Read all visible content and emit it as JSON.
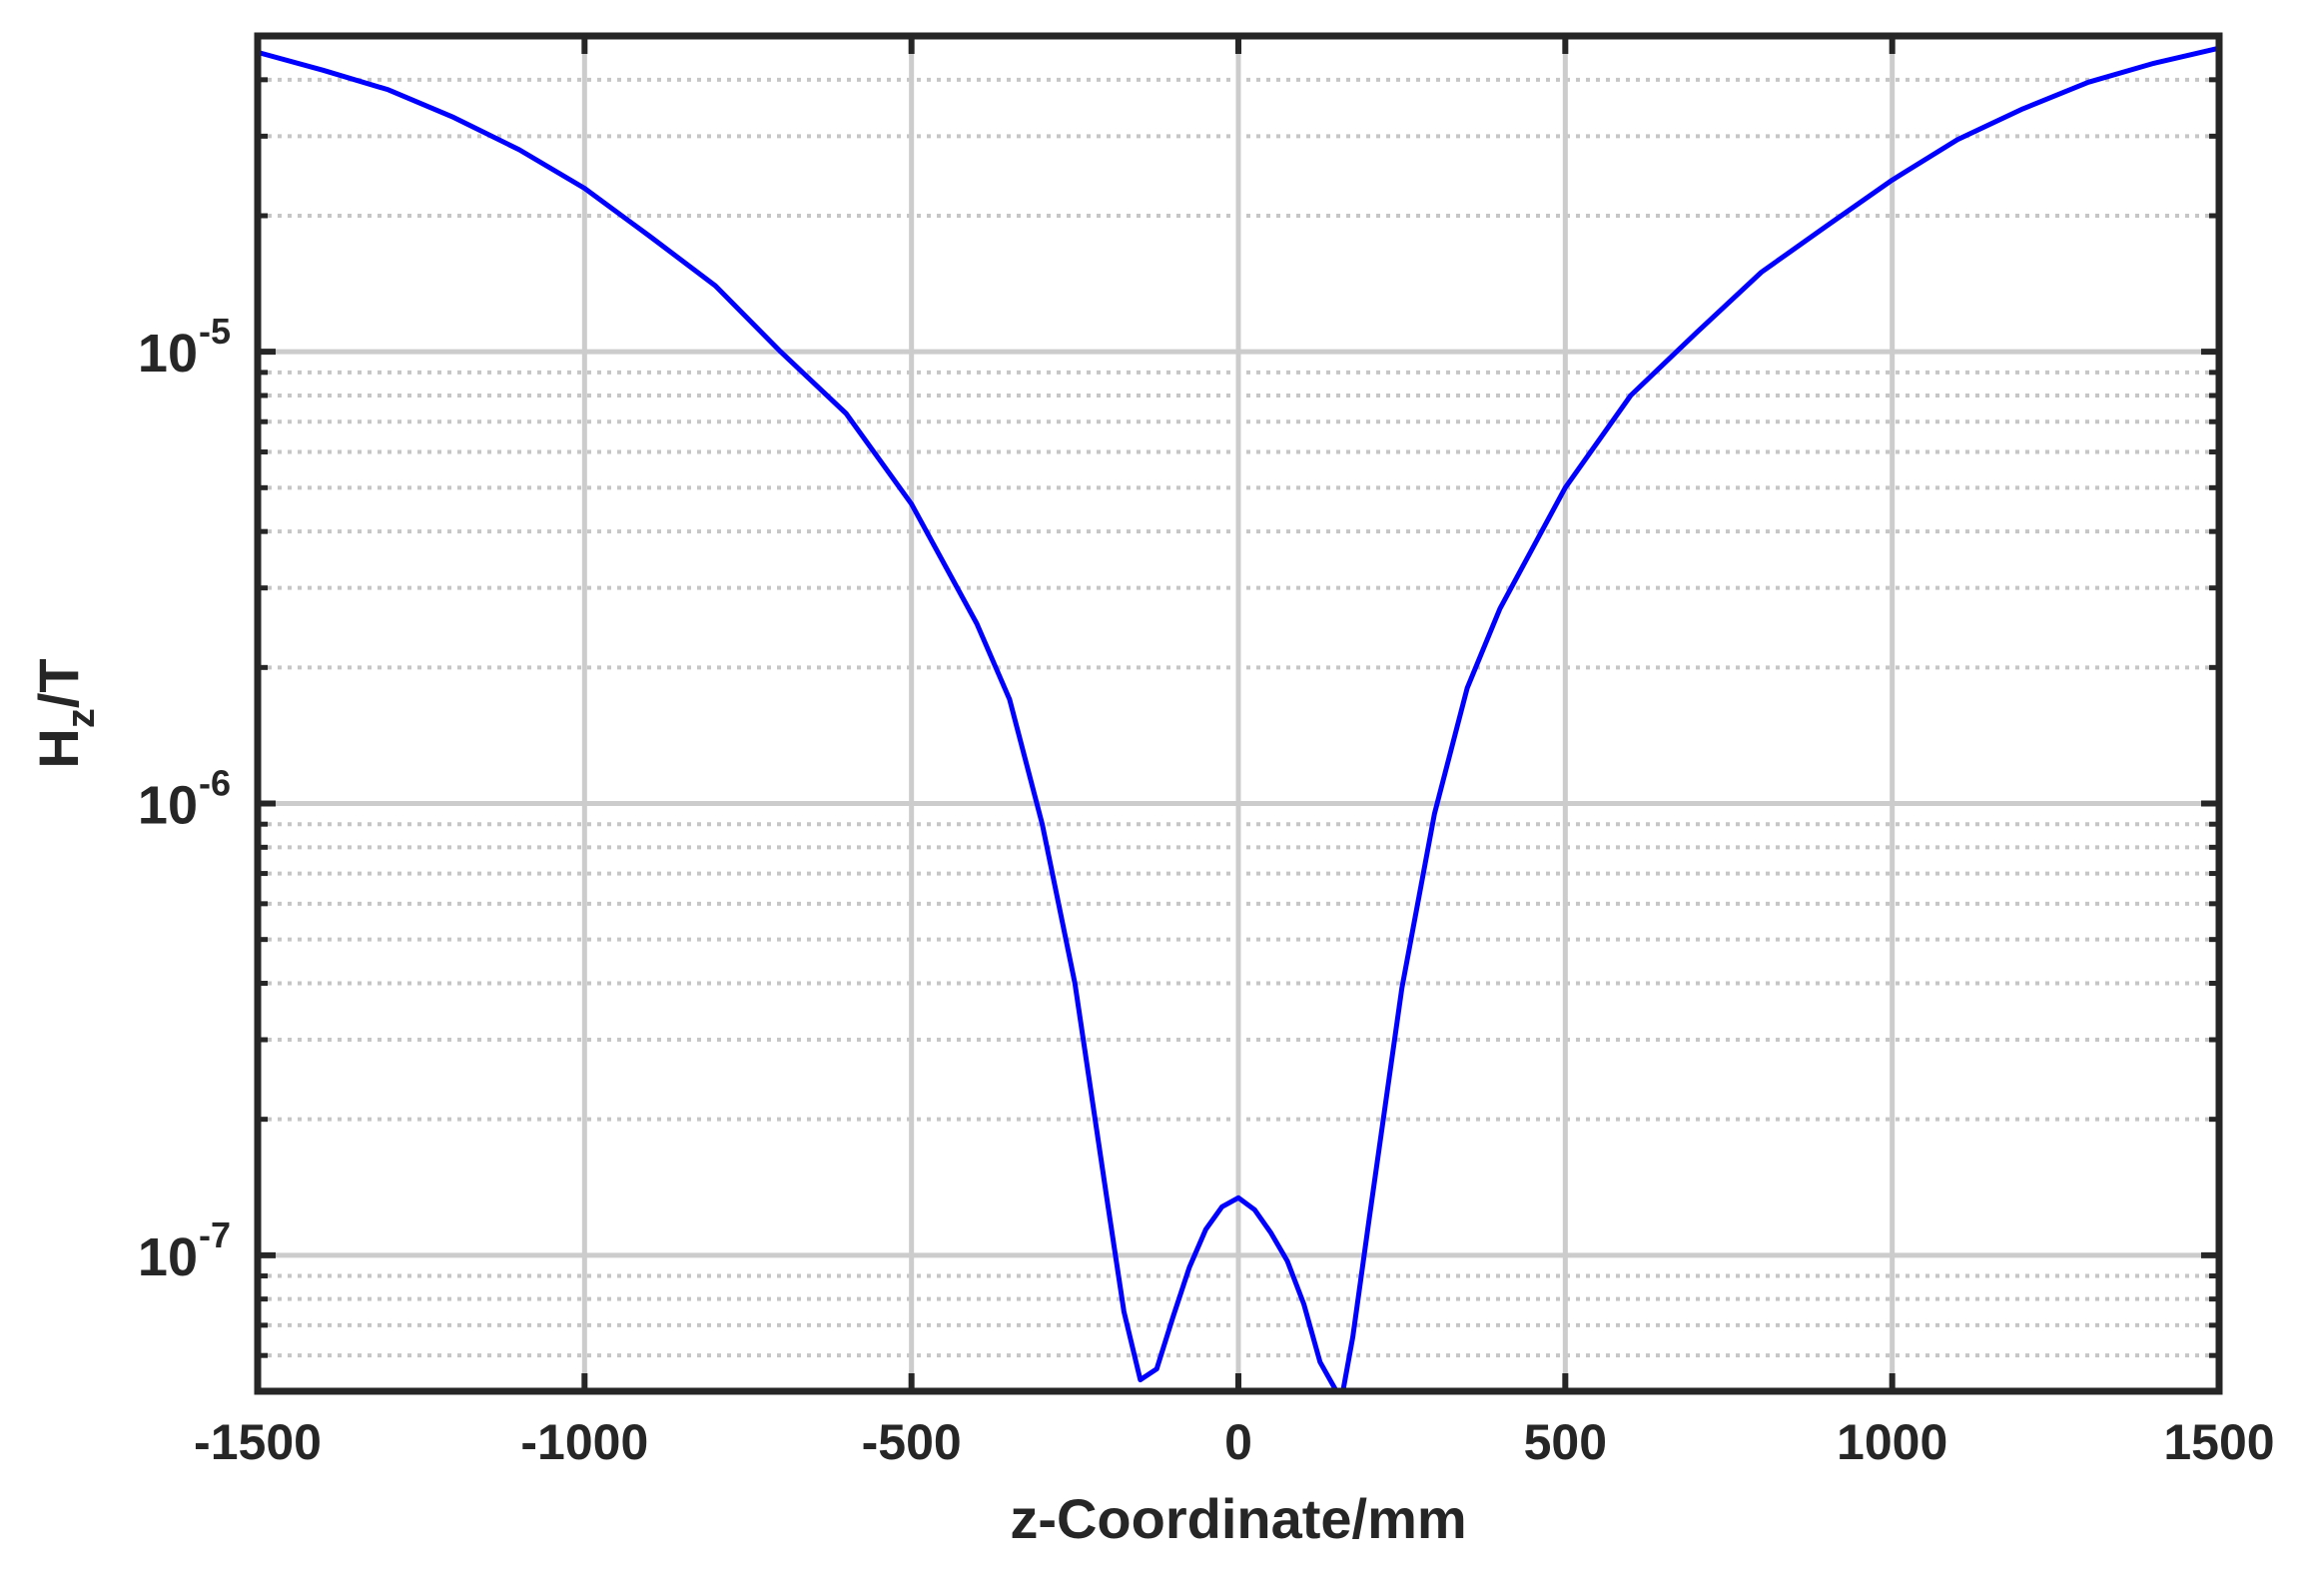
{
  "chart_data": {
    "type": "line",
    "title": "",
    "xlabel": "z-Coordinate/mm",
    "ylabel": {
      "base": "H",
      "subscript": "z",
      "suffix": "/T"
    },
    "xlim": [
      -1500,
      1500
    ],
    "ylim": [
      5e-08,
      5e-05
    ],
    "yscale": "log",
    "grid": true,
    "minor_grid": true,
    "legend": "none",
    "xticks": [
      -1500,
      -1000,
      -500,
      0,
      500,
      1000,
      1500
    ],
    "xtick_labels": [
      "-1500",
      "-1000",
      "-500",
      "0",
      "500",
      "1000",
      "1500"
    ],
    "yticks": [
      1e-07,
      1e-06,
      1e-05
    ],
    "ytick_labels": [
      {
        "base": "10",
        "exp": "-7"
      },
      {
        "base": "10",
        "exp": "-6"
      },
      {
        "base": "10",
        "exp": "-5"
      }
    ],
    "series": [
      {
        "color": "#0000ff",
        "x": [
          -1500,
          -1400,
          -1300,
          -1200,
          -1100,
          -1000,
          -900,
          -800,
          -700,
          -600,
          -500,
          -400,
          -350,
          -300,
          -250,
          -200,
          -175,
          -150,
          -125,
          -100,
          -75,
          -50,
          -25,
          0,
          25,
          50,
          75,
          100,
          125,
          150,
          160,
          175,
          200,
          250,
          300,
          350,
          400,
          500,
          600,
          700,
          800,
          900,
          1000,
          1100,
          1200,
          1300,
          1400,
          1500
        ],
        "y": [
          4.6e-05,
          4.2e-05,
          3.8e-05,
          3.3e-05,
          2.8e-05,
          2.3e-05,
          1.8e-05,
          1.4e-05,
          1e-05,
          7.3e-06,
          4.6e-06,
          2.5e-06,
          1.7e-06,
          9e-07,
          4e-07,
          1.3e-07,
          7.5e-08,
          5.3e-08,
          5.6e-08,
          7.3e-08,
          9.4e-08,
          1.14e-07,
          1.28e-07,
          1.34e-07,
          1.26e-07,
          1.12e-07,
          9.7e-08,
          7.8e-08,
          5.8e-08,
          5e-08,
          5e-08,
          6.6e-08,
          1.2e-07,
          3.9e-07,
          9.5e-07,
          1.8e-06,
          2.7e-06,
          5e-06,
          8e-06,
          1.1e-05,
          1.5e-05,
          1.9e-05,
          2.4e-05,
          2.95e-05,
          3.45e-05,
          3.95e-05,
          4.35e-05,
          4.7e-05
        ]
      }
    ]
  }
}
